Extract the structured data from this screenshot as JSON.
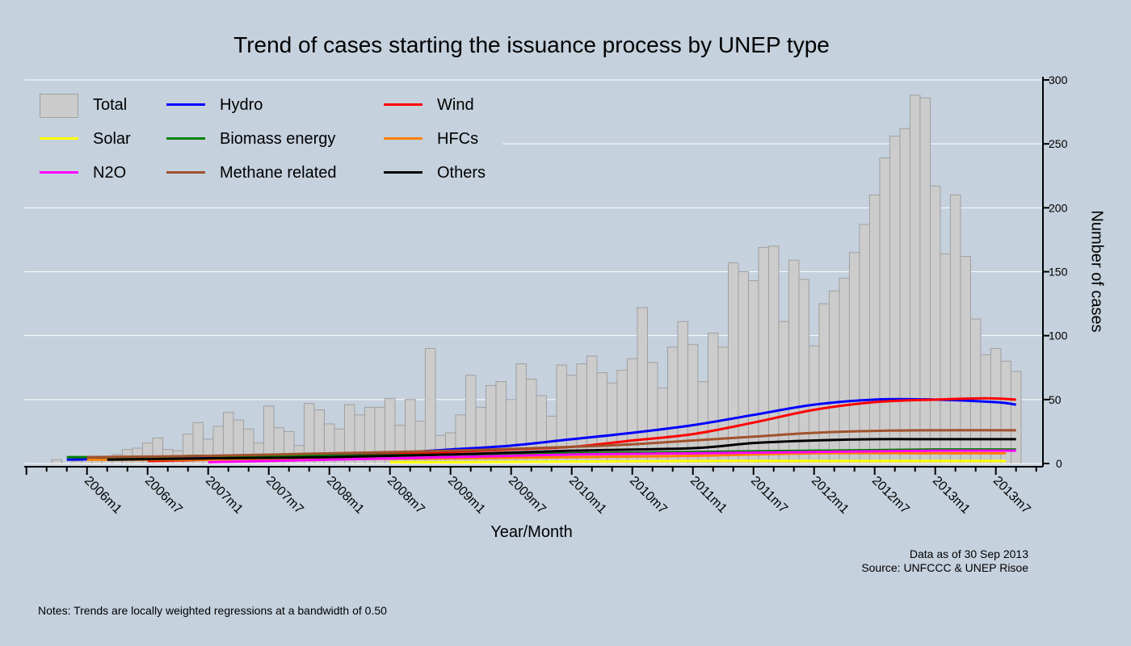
{
  "chart_data": {
    "type": "bar",
    "title": "Trend of cases starting the issuance process by UNEP type",
    "xlabel": "Year/Month",
    "ylabel": "Number of cases",
    "ylim": [
      0,
      300
    ],
    "xlim": [
      "2005m7",
      "2013m11"
    ],
    "y_axis_position": "right",
    "grid": true,
    "legend_position": "top-left",
    "y_ticks": [
      0,
      50,
      100,
      150,
      200,
      250,
      300
    ],
    "x_tick_labels": [
      "2006m1",
      "2006m7",
      "2007m1",
      "2007m7",
      "2008m1",
      "2008m7",
      "2009m1",
      "2009m7",
      "2010m1",
      "2010m7",
      "2011m1",
      "2011m7",
      "2012m1",
      "2012m7",
      "2013m1",
      "2013m7"
    ],
    "categories": [
      "2005m10",
      "2005m11",
      "2005m12",
      "2006m1",
      "2006m2",
      "2006m3",
      "2006m4",
      "2006m5",
      "2006m6",
      "2006m7",
      "2006m8",
      "2006m9",
      "2006m10",
      "2006m11",
      "2006m12",
      "2007m1",
      "2007m2",
      "2007m3",
      "2007m4",
      "2007m5",
      "2007m6",
      "2007m7",
      "2007m8",
      "2007m9",
      "2007m10",
      "2007m11",
      "2007m12",
      "2008m1",
      "2008m2",
      "2008m3",
      "2008m4",
      "2008m5",
      "2008m6",
      "2008m7",
      "2008m8",
      "2008m9",
      "2008m10",
      "2008m11",
      "2008m12",
      "2009m1",
      "2009m2",
      "2009m3",
      "2009m4",
      "2009m5",
      "2009m6",
      "2009m7",
      "2009m8",
      "2009m9",
      "2009m10",
      "2009m11",
      "2009m12",
      "2010m1",
      "2010m2",
      "2010m3",
      "2010m4",
      "2010m5",
      "2010m6",
      "2010m7",
      "2010m8",
      "2010m9",
      "2010m10",
      "2010m11",
      "2010m12",
      "2011m1",
      "2011m2",
      "2011m3",
      "2011m4",
      "2011m5",
      "2011m6",
      "2011m7",
      "2011m8",
      "2011m9",
      "2011m10",
      "2011m11",
      "2011m12",
      "2012m1",
      "2012m2",
      "2012m3",
      "2012m4",
      "2012m5",
      "2012m6",
      "2012m7",
      "2012m8",
      "2012m9",
      "2012m10",
      "2012m11",
      "2012m12",
      "2013m1",
      "2013m2",
      "2013m3",
      "2013m4",
      "2013m5",
      "2013m6",
      "2013m7",
      "2013m8",
      "2013m9"
    ],
    "bars": {
      "name": "Total",
      "color": "#cccccc",
      "values": [
        3,
        0,
        2,
        3,
        3,
        3,
        7,
        11,
        12,
        16,
        20,
        11,
        10,
        23,
        32,
        19,
        29,
        40,
        34,
        27,
        16,
        45,
        28,
        25,
        14,
        47,
        42,
        31,
        27,
        46,
        38,
        44,
        44,
        51,
        30,
        50,
        33,
        90,
        22,
        24,
        38,
        69,
        44,
        61,
        64,
        50,
        78,
        66,
        53,
        37,
        77,
        69,
        78,
        84,
        71,
        63,
        73,
        82,
        122,
        79,
        59,
        91,
        111,
        93,
        64,
        102,
        91,
        157,
        150,
        143,
        169,
        170,
        111,
        159,
        144,
        92,
        125,
        135,
        145,
        165,
        187,
        210,
        239,
        256,
        262,
        288,
        286,
        217,
        164,
        210,
        162,
        113,
        85,
        90,
        80,
        72
      ]
    },
    "series": [
      {
        "name": "Hydro",
        "color": "#0000ff",
        "points": [
          [
            "2005m11",
            3
          ],
          [
            "2006m7",
            4
          ],
          [
            "2007m1",
            5
          ],
          [
            "2007m7",
            6
          ],
          [
            "2008m1",
            7
          ],
          [
            "2008m7",
            8
          ],
          [
            "2009m1",
            11
          ],
          [
            "2009m7",
            14
          ],
          [
            "2010m1",
            19
          ],
          [
            "2010m7",
            24
          ],
          [
            "2011m1",
            30
          ],
          [
            "2011m7",
            38
          ],
          [
            "2012m1",
            46
          ],
          [
            "2012m7",
            50
          ],
          [
            "2013m1",
            50
          ],
          [
            "2013m7",
            48
          ],
          [
            "2013m9",
            46
          ]
        ]
      },
      {
        "name": "Wind",
        "color": "#ff0000",
        "points": [
          [
            "2006m7",
            2
          ],
          [
            "2007m1",
            3
          ],
          [
            "2007m7",
            5
          ],
          [
            "2008m1",
            6
          ],
          [
            "2008m7",
            7
          ],
          [
            "2009m1",
            9
          ],
          [
            "2009m7",
            11
          ],
          [
            "2010m1",
            13
          ],
          [
            "2010m7",
            18
          ],
          [
            "2011m1",
            23
          ],
          [
            "2011m7",
            32
          ],
          [
            "2012m1",
            42
          ],
          [
            "2012m7",
            48
          ],
          [
            "2013m1",
            50
          ],
          [
            "2013m6",
            51
          ],
          [
            "2013m9",
            50
          ]
        ]
      },
      {
        "name": "Solar",
        "color": "#ffff00",
        "points": [
          [
            "2008m7",
            1
          ],
          [
            "2009m1",
            1
          ],
          [
            "2010m1",
            1.5
          ],
          [
            "2011m1",
            2
          ],
          [
            "2012m1",
            2
          ],
          [
            "2013m1",
            2
          ],
          [
            "2013m8",
            2
          ]
        ]
      },
      {
        "name": "Biomass energy",
        "color": "#008000",
        "points": [
          [
            "2005m11",
            5
          ],
          [
            "2006m7",
            5
          ],
          [
            "2007m1",
            6
          ],
          [
            "2008m1",
            6
          ],
          [
            "2009m1",
            7
          ],
          [
            "2010m1",
            8
          ],
          [
            "2011m1",
            9
          ],
          [
            "2012m1",
            10
          ],
          [
            "2013m1",
            11
          ],
          [
            "2013m9",
            11
          ]
        ]
      },
      {
        "name": "HFCs",
        "color": "#ff8000",
        "points": [
          [
            "2006m1",
            3
          ],
          [
            "2006m7",
            3
          ],
          [
            "2007m1",
            3
          ],
          [
            "2008m1",
            3.5
          ],
          [
            "2009m1",
            4
          ],
          [
            "2010m1",
            5
          ],
          [
            "2011m1",
            6
          ],
          [
            "2012m1",
            8
          ],
          [
            "2013m1",
            8
          ],
          [
            "2013m8",
            8
          ]
        ]
      },
      {
        "name": "N2O",
        "color": "#ff00ff",
        "points": [
          [
            "2007m1",
            1
          ],
          [
            "2007m7",
            2
          ],
          [
            "2008m1",
            3
          ],
          [
            "2009m1",
            5
          ],
          [
            "2010m1",
            7
          ],
          [
            "2011m1",
            8
          ],
          [
            "2012m1",
            9
          ],
          [
            "2013m1",
            10
          ],
          [
            "2013m9",
            10
          ]
        ]
      },
      {
        "name": "Methane related",
        "color": "#a0522d",
        "points": [
          [
            "2006m1",
            5
          ],
          [
            "2007m1",
            6
          ],
          [
            "2008m1",
            8
          ],
          [
            "2009m1",
            10
          ],
          [
            "2010m1",
            13
          ],
          [
            "2010m7",
            15
          ],
          [
            "2011m1",
            18
          ],
          [
            "2011m7",
            21
          ],
          [
            "2012m1",
            24
          ],
          [
            "2012m7",
            25.5
          ],
          [
            "2013m1",
            26
          ],
          [
            "2013m9",
            26
          ]
        ]
      },
      {
        "name": "Others",
        "color": "#000000",
        "points": [
          [
            "2006m3",
            3
          ],
          [
            "2007m1",
            4
          ],
          [
            "2008m1",
            5
          ],
          [
            "2009m1",
            7
          ],
          [
            "2010m1",
            10
          ],
          [
            "2011m1",
            12
          ],
          [
            "2011m7",
            16
          ],
          [
            "2012m1",
            18
          ],
          [
            "2012m7",
            19
          ],
          [
            "2013m1",
            19
          ],
          [
            "2013m9",
            19
          ]
        ]
      }
    ],
    "notes": {
      "data_as_of": "Data as of 30 Sep 2013",
      "source": "Source: UNFCCC & UNEP Risoe",
      "footnote": "Notes: Trends are locally weighted regressions at a bandwidth of 0.50"
    }
  },
  "legend": {
    "items": [
      {
        "label": "Total",
        "color": "#cccccc",
        "kind": "box"
      },
      {
        "label": "Hydro",
        "color": "#0000ff",
        "kind": "line"
      },
      {
        "label": "Wind",
        "color": "#ff0000",
        "kind": "line"
      },
      {
        "label": "Solar",
        "color": "#ffff00",
        "kind": "line"
      },
      {
        "label": "Biomass energy",
        "color": "#008000",
        "kind": "line"
      },
      {
        "label": "HFCs",
        "color": "#ff8000",
        "kind": "line"
      },
      {
        "label": "N2O",
        "color": "#ff00ff",
        "kind": "line"
      },
      {
        "label": "Methane related",
        "color": "#a0522d",
        "kind": "line"
      },
      {
        "label": "Others",
        "color": "#000000",
        "kind": "line"
      }
    ]
  }
}
